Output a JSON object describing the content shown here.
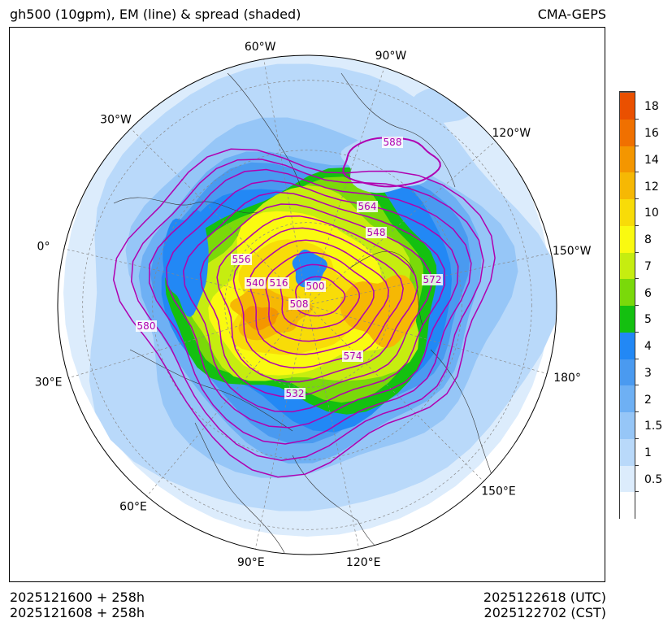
{
  "header": {
    "title": "gh500 (10gpm), EM (line) & spread (shaded)",
    "model": "CMA-GEPS"
  },
  "footer": {
    "init_utc": "2025121600 + 258h",
    "init_cst": "2025121608 + 258h",
    "valid_utc": "2025122618 (UTC)",
    "valid_cst": "2025122702 (CST)"
  },
  "colors": {
    "contour": "#b000b0",
    "grid": "#888888",
    "coast": "#333333"
  },
  "chart_data": {
    "type": "polar-stereographic-contour-map",
    "title": "gh500 (10gpm), EM (line) & spread (shaded)",
    "projection": "North polar stereographic",
    "longitude_labels": [
      "60°W",
      "90°W",
      "120°W",
      "150°W",
      "180°",
      "150°E",
      "120°E",
      "90°E",
      "60°E",
      "30°E",
      "0°",
      "30°W"
    ],
    "contour_variable": "ensemble mean 500 hPa geopotential height (10 gpm)",
    "contour_labels": [
      "588",
      "564",
      "548",
      "572",
      "556",
      "540",
      "516",
      "500",
      "508",
      "580",
      "574",
      "532"
    ],
    "shading_variable": "ensemble spread",
    "colorbar": {
      "levels": [
        "0.5",
        "1",
        "1.5",
        "2",
        "3",
        "4",
        "5",
        "6",
        "7",
        "8",
        "10",
        "12",
        "14",
        "16",
        "18"
      ],
      "colors": [
        "#ffffff",
        "#dcecfc",
        "#b9d9fa",
        "#96c6f7",
        "#6eb0f4",
        "#4a9af0",
        "#2288f5",
        "#14c010",
        "#7ad90a",
        "#c6ed10",
        "#fafa10",
        "#f8dc08",
        "#f6b804",
        "#f49600",
        "#f07000",
        "#ea5000"
      ]
    }
  }
}
